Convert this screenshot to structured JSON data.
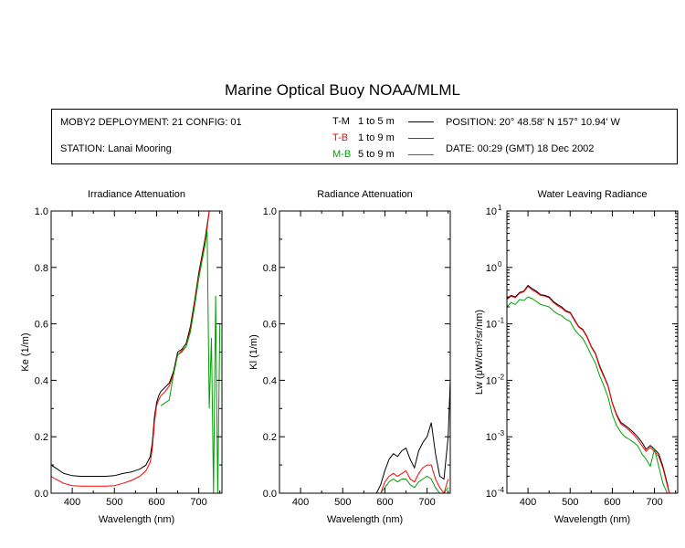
{
  "header": {
    "title": "Marine Optical Buoy NOAA/MLML",
    "deployment": "MOBY2 DEPLOYMENT: 21 CONFIG: 01",
    "station": "STATION: Lanai Mooring",
    "position": "POSITION: 20° 48.58' N   157° 10.94' W",
    "date": "DATE: 00:29 (GMT) 18 Dec 2002"
  },
  "legend": [
    {
      "code": "T-M",
      "range": "1 to 5  m",
      "color": "#000000"
    },
    {
      "code": "T-B",
      "range": "1 to 9  m",
      "color": "#ff0000"
    },
    {
      "code": "M-B",
      "range": "5 to 9  m",
      "color": "#00a000"
    }
  ],
  "chart_data": [
    {
      "type": "line",
      "title": "Irradiance Attenuation",
      "xlabel": "Wavelength (nm)",
      "ylabel": "Ke  (1/m)",
      "xlim": [
        350,
        755
      ],
      "ylim": [
        0,
        1.0
      ],
      "x_ticks": [
        400,
        500,
        600,
        700
      ],
      "y_ticks": [
        "0.0",
        "0.2",
        "0.4",
        "0.6",
        "0.8",
        "1.0"
      ],
      "y_tick_values": [
        0,
        0.2,
        0.4,
        0.6,
        0.8,
        1.0
      ],
      "series": [
        {
          "color": "#000000",
          "x": [
            350,
            360,
            380,
            400,
            420,
            450,
            480,
            500,
            520,
            540,
            560,
            575,
            585,
            590,
            595,
            600,
            605,
            610,
            620,
            630,
            640,
            650,
            660,
            670,
            680,
            690,
            700,
            705,
            710,
            715,
            720,
            725,
            730
          ],
          "y": [
            0.1,
            0.09,
            0.07,
            0.062,
            0.06,
            0.06,
            0.06,
            0.062,
            0.07,
            0.075,
            0.085,
            0.1,
            0.13,
            0.18,
            0.27,
            0.32,
            0.345,
            0.36,
            0.375,
            0.39,
            0.43,
            0.5,
            0.51,
            0.53,
            0.59,
            0.68,
            0.78,
            0.82,
            0.86,
            0.9,
            0.95,
            1.0,
            1.0
          ]
        },
        {
          "color": "#ff0000",
          "x": [
            350,
            360,
            380,
            400,
            420,
            450,
            480,
            500,
            520,
            540,
            560,
            575,
            585,
            590,
            595,
            600,
            605,
            610,
            620,
            630,
            640,
            650,
            660,
            670,
            680,
            690,
            700,
            705,
            710,
            715,
            720,
            725,
            730
          ],
          "y": [
            0.06,
            0.05,
            0.035,
            0.027,
            0.025,
            0.025,
            0.025,
            0.027,
            0.035,
            0.045,
            0.06,
            0.08,
            0.11,
            0.16,
            0.25,
            0.31,
            0.33,
            0.345,
            0.36,
            0.38,
            0.42,
            0.49,
            0.505,
            0.52,
            0.58,
            0.67,
            0.77,
            0.81,
            0.85,
            0.89,
            0.94,
            1.0,
            1.0
          ]
        },
        {
          "color": "#00a000",
          "x": [
            610,
            615,
            620,
            625,
            630,
            640,
            650,
            660,
            670,
            680,
            690,
            700,
            705,
            710,
            715,
            720,
            725,
            730,
            735,
            740,
            745,
            750
          ],
          "y": [
            0.31,
            0.315,
            0.32,
            0.325,
            0.33,
            0.42,
            0.49,
            0.5,
            0.52,
            0.57,
            0.66,
            0.76,
            0.8,
            0.84,
            0.88,
            0.93,
            0.3,
            0.55,
            0.0,
            0.7,
            0.0,
            0.6
          ]
        }
      ]
    },
    {
      "type": "line",
      "title": "Radiance Attenuation",
      "xlabel": "Wavelength (nm)",
      "ylabel": "Kl  (1/m)",
      "xlim": [
        350,
        755
      ],
      "ylim": [
        0,
        1.0
      ],
      "x_ticks": [
        400,
        500,
        600,
        700
      ],
      "y_ticks": [
        "0.0",
        "0.2",
        "0.4",
        "0.6",
        "0.8",
        "1.0"
      ],
      "y_tick_values": [
        0,
        0.2,
        0.4,
        0.6,
        0.8,
        1.0
      ],
      "series": [
        {
          "color": "#000000",
          "x": [
            580,
            590,
            600,
            610,
            620,
            630,
            640,
            650,
            660,
            670,
            680,
            690,
            700,
            710,
            720,
            730,
            740,
            750,
            755
          ],
          "y": [
            0.0,
            0.03,
            0.08,
            0.12,
            0.14,
            0.13,
            0.15,
            0.16,
            0.12,
            0.09,
            0.15,
            0.18,
            0.2,
            0.25,
            0.14,
            0.06,
            0.05,
            0.2,
            0.4
          ]
        },
        {
          "color": "#ff0000",
          "x": [
            590,
            600,
            610,
            620,
            630,
            640,
            650,
            660,
            670,
            680,
            690,
            700,
            710,
            720,
            730,
            740,
            750
          ],
          "y": [
            0.0,
            0.04,
            0.06,
            0.07,
            0.06,
            0.07,
            0.08,
            0.05,
            0.04,
            0.07,
            0.09,
            0.1,
            0.1,
            0.05,
            0.02,
            0.0,
            0.05
          ]
        },
        {
          "color": "#00a000",
          "x": [
            590,
            600,
            610,
            620,
            630,
            640,
            650,
            660,
            670,
            680,
            690,
            700,
            710,
            720,
            730,
            740,
            750
          ],
          "y": [
            0.0,
            0.02,
            0.04,
            0.05,
            0.04,
            0.05,
            0.05,
            0.03,
            0.02,
            0.04,
            0.05,
            0.06,
            0.05,
            0.02,
            0.0,
            0.0,
            0.02
          ]
        }
      ]
    },
    {
      "type": "line",
      "title": "Water Leaving Radiance",
      "xlabel": "Wavelength (nm)",
      "ylabel": "Lw  (μW/cm²/sr/nm)",
      "xlim": [
        350,
        755
      ],
      "ylim": [
        0.0001,
        10
      ],
      "yscale": "log",
      "x_ticks": [
        400,
        500,
        600,
        700
      ],
      "y_tick_exponents": [
        -4,
        -3,
        -2,
        -1,
        0,
        1
      ],
      "series": [
        {
          "color": "#000000",
          "x": [
            350,
            360,
            370,
            380,
            390,
            400,
            410,
            420,
            430,
            440,
            450,
            460,
            470,
            480,
            490,
            500,
            510,
            520,
            530,
            540,
            550,
            560,
            570,
            580,
            590,
            600,
            610,
            620,
            630,
            640,
            650,
            660,
            670,
            680,
            690,
            700,
            710,
            720,
            730,
            735
          ],
          "y": [
            0.28,
            0.32,
            0.3,
            0.36,
            0.38,
            0.48,
            0.42,
            0.38,
            0.33,
            0.32,
            0.3,
            0.25,
            0.22,
            0.2,
            0.17,
            0.16,
            0.12,
            0.09,
            0.08,
            0.06,
            0.04,
            0.03,
            0.018,
            0.012,
            0.008,
            0.004,
            0.0025,
            0.0018,
            0.0016,
            0.0014,
            0.0012,
            0.001,
            0.0008,
            0.0006,
            0.0007,
            0.0006,
            0.0005,
            0.0003,
            0.00015,
            0.0001
          ]
        },
        {
          "color": "#ff0000",
          "x": [
            350,
            360,
            370,
            380,
            390,
            400,
            410,
            420,
            430,
            440,
            450,
            460,
            470,
            480,
            490,
            500,
            510,
            520,
            530,
            540,
            550,
            560,
            570,
            580,
            590,
            600,
            610,
            620,
            630,
            640,
            650,
            660,
            670,
            680,
            690,
            700,
            710,
            720,
            730,
            735
          ],
          "y": [
            0.27,
            0.31,
            0.29,
            0.35,
            0.37,
            0.46,
            0.4,
            0.36,
            0.32,
            0.31,
            0.29,
            0.24,
            0.21,
            0.19,
            0.165,
            0.155,
            0.115,
            0.088,
            0.078,
            0.058,
            0.039,
            0.029,
            0.017,
            0.0115,
            0.0078,
            0.0039,
            0.0024,
            0.0017,
            0.0015,
            0.0013,
            0.0011,
            0.0009,
            0.0007,
            0.00055,
            0.00065,
            0.00055,
            0.00045,
            0.00028,
            0.00014,
            0.0001
          ]
        },
        {
          "color": "#00a000",
          "x": [
            350,
            360,
            370,
            380,
            390,
            400,
            410,
            420,
            430,
            440,
            450,
            460,
            470,
            480,
            490,
            500,
            510,
            520,
            530,
            540,
            550,
            560,
            570,
            580,
            590,
            600,
            610,
            620,
            630,
            640,
            650,
            660,
            670,
            680,
            690,
            700,
            710,
            720,
            730,
            735
          ],
          "y": [
            0.2,
            0.24,
            0.22,
            0.27,
            0.26,
            0.3,
            0.28,
            0.25,
            0.22,
            0.21,
            0.2,
            0.17,
            0.15,
            0.14,
            0.12,
            0.11,
            0.08,
            0.065,
            0.055,
            0.04,
            0.028,
            0.02,
            0.012,
            0.008,
            0.005,
            0.0025,
            0.0016,
            0.0012,
            0.001,
            0.0009,
            0.0008,
            0.0007,
            0.0005,
            0.0004,
            0.0003,
            0.0006,
            0.0003,
            0.00015,
            0.0001,
            0.0001
          ]
        }
      ]
    }
  ]
}
